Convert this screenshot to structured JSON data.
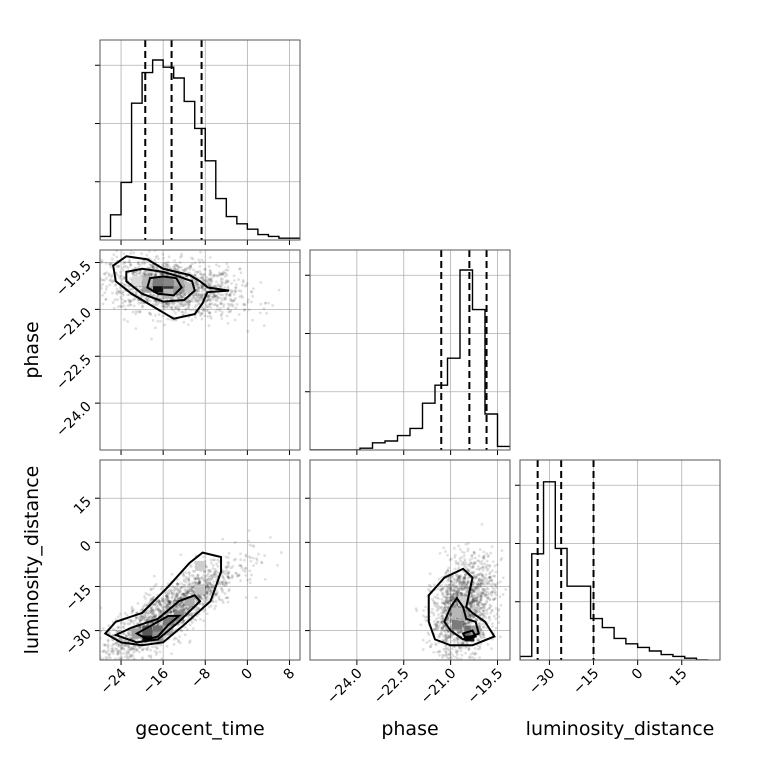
{
  "chart_data": {
    "type": "corner",
    "parameters": [
      "geocent_time",
      "phase",
      "luminosity_distance"
    ],
    "axes": {
      "geocent_time": {
        "label": "geocent_time",
        "range": [
          -28,
          10
        ],
        "ticks": [
          -24,
          -16,
          -8,
          0,
          8
        ],
        "tick_labels": [
          "−24",
          "−16",
          "−8",
          "0",
          "8"
        ]
      },
      "phase": {
        "label": "phase",
        "range": [
          -25.5,
          -19.1
        ],
        "ticks": [
          -24.0,
          -22.5,
          -21.0,
          -19.5
        ],
        "tick_labels": [
          "−24.0",
          "−22.5",
          "−21.0",
          "−19.5"
        ]
      },
      "luminosity_distance": {
        "label": "luminosity_distance",
        "range": [
          -40,
          28
        ],
        "ticks": [
          -30,
          -15,
          0,
          15
        ],
        "tick_labels": [
          "−30",
          "−15",
          "0",
          "15"
        ]
      }
    },
    "grid": true,
    "diagonal_histograms": {
      "geocent_time": {
        "bin_edges": [
          -28,
          -26,
          -24,
          -22,
          -20,
          -18,
          -16,
          -14,
          -12,
          -10,
          -8,
          -6,
          -4,
          -2,
          0,
          2,
          4,
          6,
          8,
          10
        ],
        "counts": [
          0.02,
          0.14,
          0.32,
          0.76,
          0.93,
          1.0,
          0.96,
          0.9,
          0.77,
          0.62,
          0.44,
          0.23,
          0.13,
          0.09,
          0.06,
          0.03,
          0.02,
          0.01,
          0.01
        ],
        "quantiles": [
          -19.4,
          -14.4,
          -8.7
        ]
      },
      "phase": {
        "bin_edges": [
          -25.5,
          -25.1,
          -24.7,
          -24.3,
          -23.9,
          -23.5,
          -23.1,
          -22.7,
          -22.3,
          -21.9,
          -21.5,
          -21.1,
          -20.7,
          -20.3,
          -19.9,
          -19.5,
          -19.1
        ],
        "counts": [
          0.0,
          0.0,
          0.0,
          0.0,
          0.01,
          0.04,
          0.05,
          0.08,
          0.12,
          0.26,
          0.36,
          0.51,
          1.0,
          0.78,
          0.2,
          0.02
        ],
        "quantiles": [
          -21.3,
          -20.4,
          -19.85
        ]
      },
      "luminosity_distance": {
        "bin_edges": [
          -40,
          -36,
          -32,
          -28,
          -24,
          -20,
          -16,
          -12,
          -8,
          -4,
          0,
          4,
          8,
          12,
          16,
          20,
          24
        ],
        "counts": [
          0.02,
          0.59,
          0.99,
          0.62,
          0.41,
          0.41,
          0.23,
          0.18,
          0.12,
          0.09,
          0.07,
          0.05,
          0.03,
          0.02,
          0.01,
          0.0
        ],
        "quantiles": [
          -34,
          -26,
          -15
        ]
      }
    },
    "contour_panels": [
      {
        "x": "geocent_time",
        "y": "phase",
        "levels": [
          [
            [
              -25.5,
              -19.6
            ],
            [
              -23,
              -19.3
            ],
            [
              -19,
              -19.4
            ],
            [
              -16,
              -19.7
            ],
            [
              -13.5,
              -19.8
            ],
            [
              -11,
              -19.9
            ],
            [
              -9,
              -20.1
            ],
            [
              -7.5,
              -20.3
            ],
            [
              -3.5,
              -20.4
            ],
            [
              -7.6,
              -20.45
            ],
            [
              -8.5,
              -20.8
            ],
            [
              -10,
              -21.15
            ],
            [
              -14,
              -21.3
            ],
            [
              -18,
              -20.9
            ],
            [
              -22,
              -20.5
            ],
            [
              -25,
              -20.1
            ],
            [
              -25.5,
              -19.6
            ]
          ],
          [
            [
              -23,
              -19.8
            ],
            [
              -20,
              -19.7
            ],
            [
              -16,
              -19.8
            ],
            [
              -13,
              -19.95
            ],
            [
              -10.5,
              -20.1
            ],
            [
              -10,
              -20.4
            ],
            [
              -12,
              -20.7
            ],
            [
              -16,
              -20.75
            ],
            [
              -20,
              -20.5
            ],
            [
              -23,
              -20.1
            ],
            [
              -23,
              -19.8
            ]
          ],
          [
            [
              -18.5,
              -20.0
            ],
            [
              -16,
              -19.95
            ],
            [
              -13.5,
              -20.0
            ],
            [
              -12.5,
              -20.3
            ],
            [
              -14,
              -20.55
            ],
            [
              -17,
              -20.5
            ],
            [
              -19,
              -20.3
            ],
            [
              -18.5,
              -20.0
            ]
          ]
        ],
        "cells": [
          {
            "x": -17,
            "y": -20.3,
            "d": 1.0
          },
          {
            "x": -15,
            "y": -20.3,
            "d": 0.85
          },
          {
            "x": -17,
            "y": -20.1,
            "d": 0.55
          },
          {
            "x": -15,
            "y": -20.1,
            "d": 0.5
          },
          {
            "x": -13,
            "y": -20.3,
            "d": 0.45
          },
          {
            "x": -19,
            "y": -20.3,
            "d": 0.4
          },
          {
            "x": -13,
            "y": -20.1,
            "d": 0.35
          },
          {
            "x": -19,
            "y": -20.1,
            "d": 0.3
          },
          {
            "x": -15,
            "y": -20.5,
            "d": 0.3
          },
          {
            "x": -11,
            "y": -20.3,
            "d": 0.25
          },
          {
            "x": -21,
            "y": -20.1,
            "d": 0.15
          }
        ],
        "samples": {
          "count": 1600,
          "x_mean": -14.5,
          "x_sd": 6.5,
          "y_mean": -20.3,
          "y_sd": 0.45,
          "corr": -0.3
        }
      },
      {
        "x": "geocent_time",
        "y": "luminosity_distance",
        "levels": [
          [
            [
              -27,
              -31
            ],
            [
              -24,
              -34
            ],
            [
              -20,
              -35
            ],
            [
              -16,
              -34
            ],
            [
              -12,
              -28
            ],
            [
              -7,
              -20
            ],
            [
              -5,
              -10
            ],
            [
              -5,
              -5
            ],
            [
              -8.5,
              -3.5
            ],
            [
              -11,
              -7
            ],
            [
              -15,
              -15
            ],
            [
              -20,
              -24
            ],
            [
              -25,
              -27
            ],
            [
              -27,
              -31
            ]
          ],
          [
            [
              -25,
              -31.5
            ],
            [
              -21,
              -34
            ],
            [
              -17,
              -33
            ],
            [
              -13,
              -27
            ],
            [
              -9,
              -20
            ],
            [
              -10,
              -18
            ],
            [
              -13,
              -20
            ],
            [
              -17,
              -26
            ],
            [
              -22,
              -29
            ],
            [
              -25,
              -31.5
            ]
          ],
          [
            [
              -21,
              -31
            ],
            [
              -19,
              -33
            ],
            [
              -17,
              -32
            ],
            [
              -15,
              -28
            ],
            [
              -13,
              -25
            ],
            [
              -15,
              -25
            ],
            [
              -18,
              -28
            ],
            [
              -21,
              -31
            ]
          ]
        ],
        "cells": [
          {
            "x": -19,
            "y": -32,
            "d": 1.0
          },
          {
            "x": -19,
            "y": -30,
            "d": 0.7
          },
          {
            "x": -17,
            "y": -30,
            "d": 0.6
          },
          {
            "x": -15,
            "y": -27,
            "d": 0.55
          },
          {
            "x": -13,
            "y": -25,
            "d": 0.5
          },
          {
            "x": -17,
            "y": -32,
            "d": 0.45
          },
          {
            "x": -21,
            "y": -31,
            "d": 0.4
          },
          {
            "x": -11,
            "y": -20,
            "d": 0.35
          },
          {
            "x": -15,
            "y": -30,
            "d": 0.35
          },
          {
            "x": -9,
            "y": -16,
            "d": 0.25
          },
          {
            "x": -9,
            "y": -8,
            "d": 0.2
          }
        ],
        "samples": {
          "count": 1800,
          "x_mean": -15,
          "x_sd": 6.5,
          "y_mean": -24,
          "y_sd": 9,
          "corr": 0.85
        }
      },
      {
        "x": "phase",
        "y": "luminosity_distance",
        "levels": [
          [
            [
              -21.7,
              -27
            ],
            [
              -21.5,
              -33
            ],
            [
              -21.0,
              -35
            ],
            [
              -20.3,
              -35
            ],
            [
              -19.6,
              -32
            ],
            [
              -19.9,
              -27
            ],
            [
              -20.3,
              -24
            ],
            [
              -20.5,
              -22
            ],
            [
              -20.3,
              -12
            ],
            [
              -20.6,
              -9
            ],
            [
              -21.2,
              -12
            ],
            [
              -21.7,
              -18
            ],
            [
              -21.7,
              -27
            ]
          ],
          [
            [
              -21.2,
              -27
            ],
            [
              -21,
              -30
            ],
            [
              -20.6,
              -33
            ],
            [
              -20.1,
              -31
            ],
            [
              -20.2,
              -27
            ],
            [
              -20.5,
              -26
            ],
            [
              -20.6,
              -22
            ],
            [
              -20.8,
              -19
            ],
            [
              -21.0,
              -22
            ],
            [
              -21.2,
              -27
            ]
          ],
          [
            [
              -20.6,
              -31
            ],
            [
              -20.5,
              -33
            ],
            [
              -20.2,
              -32
            ],
            [
              -20.3,
              -30
            ],
            [
              -20.6,
              -31
            ]
          ]
        ],
        "cells": [
          {
            "x": -20.4,
            "y": -32,
            "d": 1.0
          },
          {
            "x": -20.4,
            "y": -30,
            "d": 0.6
          },
          {
            "x": -20.8,
            "y": -28,
            "d": 0.55
          },
          {
            "x": -20.2,
            "y": -30,
            "d": 0.4
          },
          {
            "x": -20.6,
            "y": -25,
            "d": 0.35
          },
          {
            "x": -20.8,
            "y": -24,
            "d": 0.3
          },
          {
            "x": -20.6,
            "y": -20,
            "d": 0.2
          }
        ],
        "samples": {
          "count": 1600,
          "x_mean": -20.6,
          "x_sd": 0.5,
          "y_mean": -22,
          "y_sd": 8,
          "corr": 0.3
        }
      }
    ]
  }
}
